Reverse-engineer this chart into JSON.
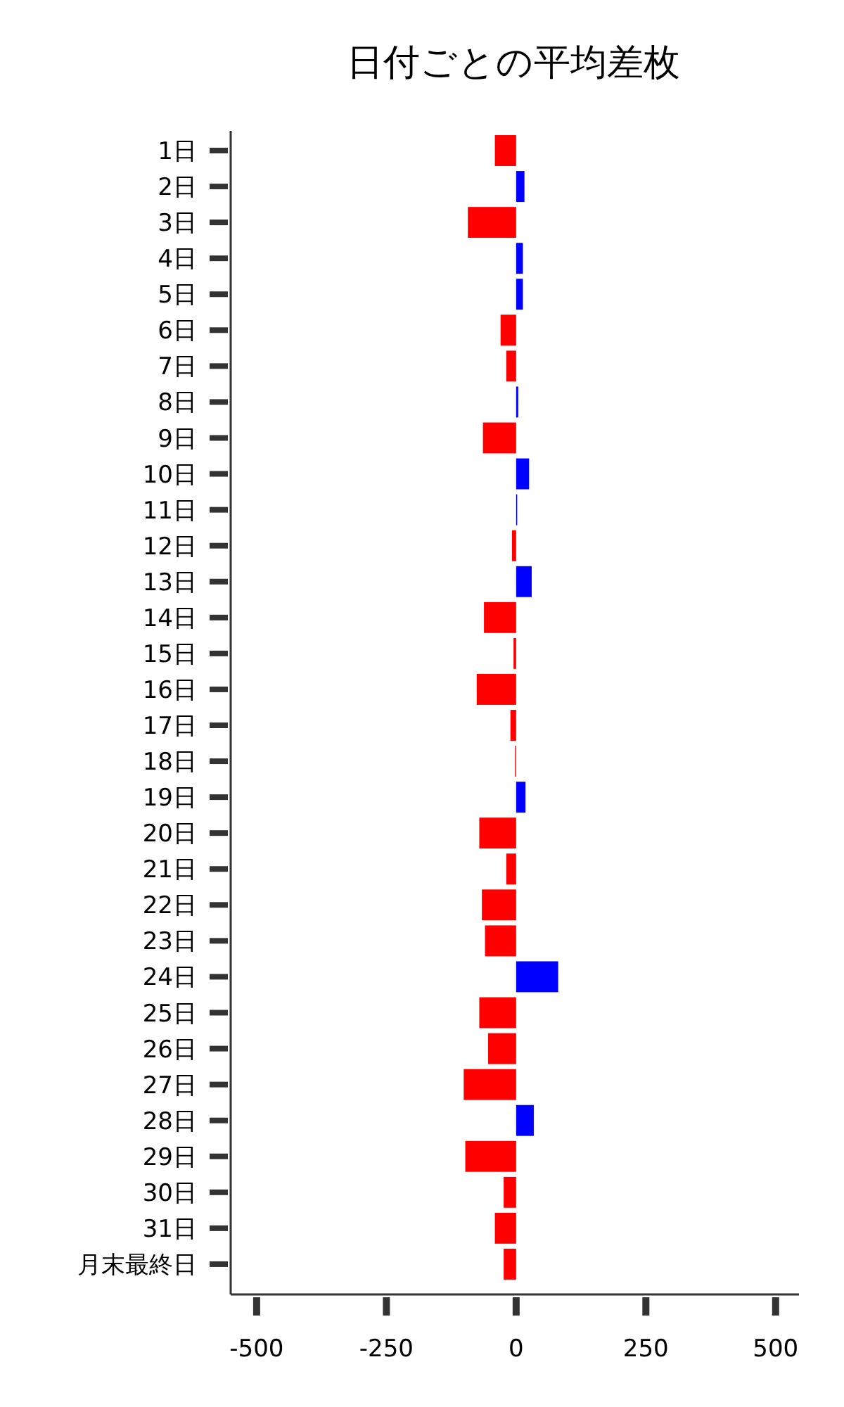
{
  "chart_data": {
    "type": "bar",
    "orientation": "horizontal",
    "title": "日付ごとの平均差枚",
    "categories": [
      "1日",
      "2日",
      "3日",
      "4日",
      "5日",
      "6日",
      "7日",
      "8日",
      "9日",
      "10日",
      "11日",
      "12日",
      "13日",
      "14日",
      "15日",
      "16日",
      "17日",
      "18日",
      "19日",
      "20日",
      "21日",
      "22日",
      "23日",
      "24日",
      "25日",
      "26日",
      "27日",
      "28日",
      "29日",
      "30日",
      "31日",
      "月末最終日"
    ],
    "values": [
      -41,
      16,
      -93,
      13,
      13,
      -30,
      -19,
      4,
      -64,
      25,
      2,
      -8,
      30,
      -62,
      -5,
      -76,
      -11,
      -2,
      18,
      -71,
      -19,
      -66,
      -60,
      81,
      -71,
      -54,
      -101,
      34,
      -98,
      -24,
      -41,
      -24
    ],
    "colors": [
      "#ff0000",
      "#0000ff",
      "#ff0000",
      "#0000ff",
      "#0000ff",
      "#ff0000",
      "#ff0000",
      "#0000ff",
      "#ff0000",
      "#0000ff",
      "#0000ff",
      "#ff0000",
      "#0000ff",
      "#ff0000",
      "#ff0000",
      "#ff0000",
      "#ff0000",
      "#ff0000",
      "#0000ff",
      "#ff0000",
      "#ff0000",
      "#ff0000",
      "#ff0000",
      "#0000ff",
      "#ff0000",
      "#ff0000",
      "#ff0000",
      "#0000ff",
      "#ff0000",
      "#ff0000",
      "#ff0000",
      "#ff0000"
    ],
    "xlim": [
      -550,
      545
    ],
    "xticks": [
      -500,
      -250,
      0,
      250,
      500
    ],
    "grid": false
  }
}
